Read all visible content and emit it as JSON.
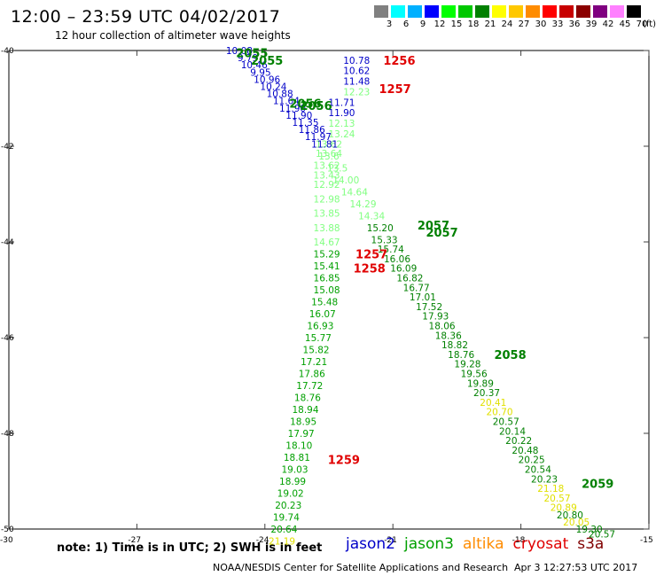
{
  "header": {
    "title": "12:00 – 23:59 UTC 04/02/2017",
    "subtitle": "12 hour collection of altimeter wave heights"
  },
  "color_scale": {
    "labels": [
      "3",
      "6",
      "9",
      "12",
      "15",
      "18",
      "21",
      "24",
      "27",
      "30",
      "33",
      "36",
      "39",
      "42",
      "45",
      "70"
    ],
    "colors": [
      "#808080",
      "#00ffff",
      "#00b0ff",
      "#0000ff",
      "#00ff00",
      "#00c800",
      "#008000",
      "#ffff00",
      "#ffc800",
      "#ff8c00",
      "#ff0000",
      "#c80000",
      "#8b0000",
      "#800080",
      "#ff80ff",
      "#000000"
    ],
    "unit": "(ft)"
  },
  "map": {
    "lon_ticks": [
      "-27",
      "-24",
      "-21",
      "-18",
      "-15"
    ],
    "lat_ticks": [
      "-40",
      "-42",
      "-44",
      "-46",
      "-48",
      "-50"
    ],
    "lon_range": [
      -30,
      -15
    ],
    "lat_range": [
      -50,
      -40
    ],
    "frame_color": "#000000",
    "tick_color": "#404040"
  },
  "chart_data": {
    "type": "scatter",
    "xlim": [
      -30,
      -15
    ],
    "ylim": [
      -50,
      -40
    ],
    "passes": [
      {
        "sat": "jason2",
        "color": "#0000c8",
        "label": "1256",
        "points": [
          {
            "lon": -21.85,
            "lat": -40.2,
            "v": "10.78"
          },
          {
            "lon": -21.85,
            "lat": -40.42,
            "v": "10.62"
          },
          {
            "lon": -21.85,
            "lat": -40.64,
            "v": "11.48"
          },
          {
            "lon": -21.85,
            "lat": -40.86,
            "v": "12.23",
            "c": "#80ff80"
          },
          {
            "lon": -22.2,
            "lat": -41.08,
            "v": "11.71"
          },
          {
            "lon": -22.2,
            "lat": -41.3,
            "v": "11.90"
          },
          {
            "lon": -22.2,
            "lat": -41.52,
            "v": "12.13",
            "c": "#80ff80"
          },
          {
            "lon": -22.2,
            "lat": -41.74,
            "v": "13.24",
            "c": "#80ff80"
          },
          {
            "lon": -22.5,
            "lat": -41.95,
            "v": "13.62",
            "c": "#80ff80"
          },
          {
            "lon": -22.5,
            "lat": -42.15,
            "v": "13.64",
            "c": "#80ff80"
          }
        ]
      },
      {
        "sat": "jason2",
        "color": "#0000c8",
        "label": "2055",
        "points": [
          {
            "lon": -24.6,
            "lat": -40.0,
            "v": "10.08"
          },
          {
            "lon": -24.4,
            "lat": -40.15,
            "v": "9.79"
          },
          {
            "lon": -24.25,
            "lat": -40.3,
            "v": "10.46"
          },
          {
            "lon": -24.1,
            "lat": -40.45,
            "v": "9.95"
          },
          {
            "lon": -23.95,
            "lat": -40.6,
            "v": "10.96"
          },
          {
            "lon": -23.8,
            "lat": -40.75,
            "v": "10.24"
          },
          {
            "lon": -23.65,
            "lat": -40.9,
            "v": "10.88"
          },
          {
            "lon": -23.5,
            "lat": -41.05,
            "v": "11.64"
          },
          {
            "lon": -23.35,
            "lat": -41.2,
            "v": "11.90"
          },
          {
            "lon": -23.2,
            "lat": -41.35,
            "v": "11.90"
          },
          {
            "lon": -23.05,
            "lat": -41.5,
            "v": "11.35"
          },
          {
            "lon": -22.9,
            "lat": -41.65,
            "v": "11.86"
          },
          {
            "lon": -22.75,
            "lat": -41.8,
            "v": "11.97"
          },
          {
            "lon": -22.6,
            "lat": -41.95,
            "v": "11.81"
          }
        ]
      },
      {
        "sat": "jason3",
        "color": "#00a000",
        "label": "1257",
        "points": [
          {
            "lon": -22.55,
            "lat": -42.4,
            "v": "13.62",
            "c": "#80ff80"
          },
          {
            "lon": -22.55,
            "lat": -42.6,
            "v": "13.43",
            "c": "#80ff80"
          },
          {
            "lon": -22.55,
            "lat": -42.8,
            "v": "12.92",
            "c": "#80ff80"
          },
          {
            "lon": -22.55,
            "lat": -43.1,
            "v": "12.98",
            "c": "#80ff80"
          },
          {
            "lon": -22.55,
            "lat": -43.4,
            "v": "13.85",
            "c": "#80ff80"
          },
          {
            "lon": -22.55,
            "lat": -43.7,
            "v": "13.88",
            "c": "#80ff80"
          },
          {
            "lon": -22.55,
            "lat": -44.0,
            "v": "14.67",
            "c": "#80ff80"
          },
          {
            "lon": -22.55,
            "lat": -44.25,
            "v": "15.29"
          },
          {
            "lon": -22.55,
            "lat": -44.5,
            "v": "15.41"
          },
          {
            "lon": -22.55,
            "lat": -44.75,
            "v": "16.85"
          },
          {
            "lon": -22.55,
            "lat": -45.0,
            "v": "15.08"
          },
          {
            "lon": -22.6,
            "lat": -45.25,
            "v": "15.48"
          },
          {
            "lon": -22.65,
            "lat": -45.5,
            "v": "16.07"
          },
          {
            "lon": -22.7,
            "lat": -45.75,
            "v": "16.93"
          },
          {
            "lon": -22.75,
            "lat": -46.0,
            "v": "15.77"
          },
          {
            "lon": -22.8,
            "lat": -46.25,
            "v": "15.82"
          },
          {
            "lon": -22.85,
            "lat": -46.5,
            "v": "17.21"
          },
          {
            "lon": -22.9,
            "lat": -46.75,
            "v": "17.86"
          },
          {
            "lon": -22.95,
            "lat": -47.0,
            "v": "17.72"
          },
          {
            "lon": -23.0,
            "lat": -47.25,
            "v": "18.76"
          },
          {
            "lon": -23.05,
            "lat": -47.5,
            "v": "18.94"
          },
          {
            "lon": -23.1,
            "lat": -47.75,
            "v": "18.95"
          },
          {
            "lon": -23.15,
            "lat": -48.0,
            "v": "17.97"
          },
          {
            "lon": -23.2,
            "lat": -48.25,
            "v": "18.10"
          }
        ]
      },
      {
        "sat": "jason3",
        "color": "#00a000",
        "label": "1258",
        "points": [
          {
            "lon": -23.25,
            "lat": -48.5,
            "v": "18.81"
          },
          {
            "lon": -23.3,
            "lat": -48.75,
            "v": "19.03"
          },
          {
            "lon": -23.35,
            "lat": -49.0,
            "v": "18.99"
          },
          {
            "lon": -23.4,
            "lat": -49.25,
            "v": "19.02"
          },
          {
            "lon": -23.45,
            "lat": -49.5,
            "v": "20.23"
          },
          {
            "lon": -23.5,
            "lat": -49.75,
            "v": "19.74"
          },
          {
            "lon": -23.55,
            "lat": -50.0,
            "v": "20.64"
          },
          {
            "lon": -23.6,
            "lat": -50.25,
            "v": "21.19",
            "c": "#e0e000"
          }
        ]
      },
      {
        "sat": "jason3",
        "color": "#008000",
        "label": "2056",
        "points": [
          {
            "lon": -22.5,
            "lat": -42.2,
            "v": "13.6",
            "c": "#80ff80"
          },
          {
            "lon": -22.3,
            "lat": -42.45,
            "v": "13.5",
            "c": "#80ff80"
          },
          {
            "lon": -22.1,
            "lat": -42.7,
            "v": "14.00",
            "c": "#80ff80"
          },
          {
            "lon": -21.9,
            "lat": -42.95,
            "v": "14.64",
            "c": "#80ff80"
          },
          {
            "lon": -21.7,
            "lat": -43.2,
            "v": "14.29",
            "c": "#80ff80"
          },
          {
            "lon": -21.5,
            "lat": -43.45,
            "v": "14.34",
            "c": "#80ff80"
          },
          {
            "lon": -21.3,
            "lat": -43.7,
            "v": "15.20"
          }
        ]
      },
      {
        "sat": "jason3",
        "color": "#008000",
        "label": "2057",
        "points": [
          {
            "lon": -21.2,
            "lat": -43.95,
            "v": "15.33"
          },
          {
            "lon": -21.05,
            "lat": -44.15,
            "v": "15.74"
          },
          {
            "lon": -20.9,
            "lat": -44.35,
            "v": "16.06"
          },
          {
            "lon": -20.75,
            "lat": -44.55,
            "v": "16.09"
          },
          {
            "lon": -20.6,
            "lat": -44.75,
            "v": "16.82"
          },
          {
            "lon": -20.45,
            "lat": -44.95,
            "v": "16.77"
          },
          {
            "lon": -20.3,
            "lat": -45.15,
            "v": "17.01"
          },
          {
            "lon": -20.15,
            "lat": -45.35,
            "v": "17.52"
          },
          {
            "lon": -20.0,
            "lat": -45.55,
            "v": "17.93"
          },
          {
            "lon": -19.85,
            "lat": -45.75,
            "v": "18.06"
          },
          {
            "lon": -19.7,
            "lat": -45.95,
            "v": "18.36"
          },
          {
            "lon": -19.55,
            "lat": -46.15,
            "v": "18.82"
          },
          {
            "lon": -19.4,
            "lat": -46.35,
            "v": "18.76"
          },
          {
            "lon": -19.25,
            "lat": -46.55,
            "v": "19.28"
          },
          {
            "lon": -19.1,
            "lat": -46.75,
            "v": "19.56"
          },
          {
            "lon": -18.95,
            "lat": -46.95,
            "v": "19.89"
          }
        ]
      },
      {
        "sat": "jason3",
        "color": "#008000",
        "label": "2058",
        "points": [
          {
            "lon": -18.8,
            "lat": -47.15,
            "v": "20.37"
          },
          {
            "lon": -18.65,
            "lat": -47.35,
            "v": "20.41",
            "c": "#e0e000"
          },
          {
            "lon": -18.5,
            "lat": -47.55,
            "v": "20.70",
            "c": "#e0e000"
          },
          {
            "lon": -18.35,
            "lat": -47.75,
            "v": "20.57"
          },
          {
            "lon": -18.2,
            "lat": -47.95,
            "v": "20.14"
          },
          {
            "lon": -18.05,
            "lat": -48.15,
            "v": "20.22"
          },
          {
            "lon": -17.9,
            "lat": -48.35,
            "v": "20.48"
          },
          {
            "lon": -17.75,
            "lat": -48.55,
            "v": "20.25"
          },
          {
            "lon": -17.6,
            "lat": -48.75,
            "v": "20.54"
          },
          {
            "lon": -17.45,
            "lat": -48.95,
            "v": "20.23"
          },
          {
            "lon": -17.3,
            "lat": -49.15,
            "v": "21.18",
            "c": "#e0e000"
          },
          {
            "lon": -17.15,
            "lat": -49.35,
            "v": "20.57",
            "c": "#e0e000"
          },
          {
            "lon": -17.0,
            "lat": -49.55,
            "v": "20.89",
            "c": "#e0e000"
          }
        ]
      },
      {
        "sat": "jason3",
        "color": "#008000",
        "label": "2059",
        "points": [
          {
            "lon": -16.85,
            "lat": -49.7,
            "v": "20.80"
          },
          {
            "lon": -16.7,
            "lat": -49.85,
            "v": "20.05",
            "c": "#e0e000"
          },
          {
            "lon": -16.4,
            "lat": -50.0,
            "v": "19.30"
          },
          {
            "lon": -16.1,
            "lat": -50.1,
            "v": "20.57"
          }
        ]
      }
    ],
    "pass_labels": [
      {
        "text": "2055",
        "lon": -24.3,
        "lat": -40.05,
        "color": "#008000"
      },
      {
        "text": "2055",
        "lon": -23.95,
        "lat": -40.2,
        "color": "#008000"
      },
      {
        "text": "1256",
        "lon": -20.85,
        "lat": -40.2,
        "color": "#e00000"
      },
      {
        "text": "1257",
        "lon": -20.95,
        "lat": -40.8,
        "color": "#e00000"
      },
      {
        "text": "2056",
        "lon": -23.05,
        "lat": -41.1,
        "color": "#008000"
      },
      {
        "text": "2056",
        "lon": -22.8,
        "lat": -41.15,
        "color": "#008000"
      },
      {
        "text": "2057",
        "lon": -20.05,
        "lat": -43.65,
        "color": "#008000"
      },
      {
        "text": "2057",
        "lon": -19.85,
        "lat": -43.8,
        "color": "#008000"
      },
      {
        "text": "1257",
        "lon": -21.5,
        "lat": -44.25,
        "color": "#e00000"
      },
      {
        "text": "1258",
        "lon": -21.55,
        "lat": -44.55,
        "color": "#e00000"
      },
      {
        "text": "2058",
        "lon": -18.25,
        "lat": -46.35,
        "color": "#008000"
      },
      {
        "text": "1259",
        "lon": -22.15,
        "lat": -48.55,
        "color": "#e00000"
      },
      {
        "text": "2059",
        "lon": -16.2,
        "lat": -49.05,
        "color": "#008000"
      }
    ]
  },
  "footer": {
    "note": "note:  1) Time is in UTC;  2) SWH is in feet",
    "legend": [
      {
        "name": "jason2",
        "color": "#0000c8"
      },
      {
        "name": "jason3",
        "color": "#00a000"
      },
      {
        "name": "altika",
        "color": "#ff8c00"
      },
      {
        "name": "cryosat",
        "color": "#e00000"
      },
      {
        "name": "s3a",
        "color": "#800000"
      }
    ],
    "credit": "NOAA/NESDIS Center for Satellite Applications and Research",
    "timestamp": "Apr  3 12:27:53 UTC 2017"
  }
}
